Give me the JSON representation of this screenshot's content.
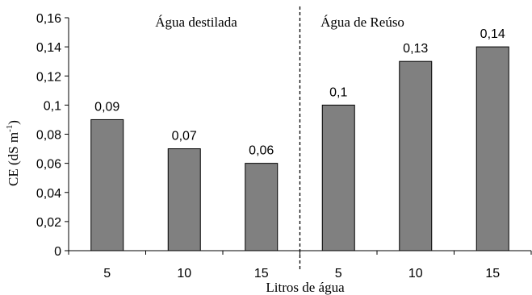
{
  "chart_data": {
    "type": "bar",
    "categories": [
      "5",
      "10",
      "15",
      "5",
      "10",
      "15"
    ],
    "values": [
      0.09,
      0.07,
      0.06,
      0.1,
      0.13,
      0.14
    ],
    "data_labels": [
      "0,09",
      "0,07",
      "0,06",
      "0,1",
      "0,13",
      "0,14"
    ],
    "groups": [
      {
        "name": "Água destilada",
        "categories": [
          "5",
          "10",
          "15"
        ],
        "values": [
          0.09,
          0.07,
          0.06
        ]
      },
      {
        "name": "Água de Reúso",
        "categories": [
          "5",
          "10",
          "15"
        ],
        "values": [
          0.1,
          0.13,
          0.14
        ]
      }
    ],
    "xlabel": "Litros de água",
    "ylabel_main": "CE (dS m",
    "ylabel_sup": "-1",
    "ylabel_close": ")",
    "ylim": [
      0,
      0.16
    ],
    "yticks": [
      0,
      0.02,
      0.04,
      0.06,
      0.08,
      0.1,
      0.12,
      0.14,
      0.16
    ],
    "ytick_labels": [
      "0",
      "0,02",
      "0,04",
      "0,06",
      "0,08",
      "0,1",
      "0,12",
      "0,14",
      "0,16"
    ],
    "grid": false,
    "divider": "dashed vertical line between the two groups",
    "bar_color": "#808080",
    "bar_edge_color": "#000000"
  }
}
